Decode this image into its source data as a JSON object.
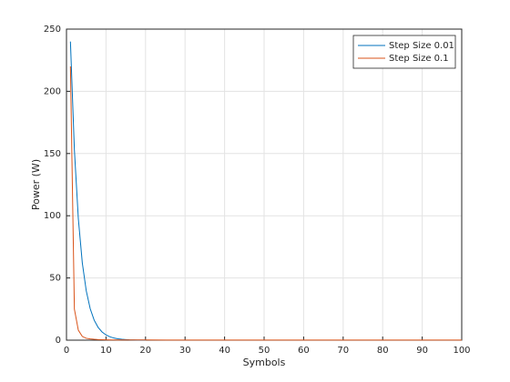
{
  "chart_data": {
    "type": "line",
    "xlabel": "Symbols",
    "ylabel": "Power (W)",
    "x": [
      1,
      2,
      3,
      4,
      5,
      6,
      7,
      8,
      9,
      10,
      11,
      12,
      13,
      14,
      15,
      16,
      17,
      18,
      19,
      20,
      25,
      30,
      35,
      40,
      45,
      50,
      55,
      60,
      65,
      70,
      75,
      80,
      85,
      90,
      95,
      100
    ],
    "series": [
      {
        "name": "Step Size 0.01",
        "color": "#0072bd",
        "values": [
          240,
          153,
          97.6,
          62.2,
          39.7,
          25.3,
          16.1,
          10.3,
          6.6,
          4.2,
          2.7,
          1.7,
          1.1,
          0.7,
          0.5,
          0.3,
          0.2,
          0.1,
          0.1,
          0.1,
          null,
          null,
          null,
          null,
          null,
          null,
          null,
          null,
          null,
          null,
          null,
          null,
          null,
          null,
          null,
          null
        ]
      },
      {
        "name": "Step Size 0.1",
        "color": "#d95319",
        "values": [
          220,
          25,
          8,
          3,
          1.5,
          1,
          0.7,
          0.5,
          0.4,
          0.3,
          0.2,
          0.2,
          0.2,
          0.2,
          0.2,
          0.2,
          0.2,
          0.2,
          0.2,
          0.2,
          0.1,
          0.1,
          0.1,
          0.1,
          0.1,
          0.1,
          0.1,
          0.1,
          0.1,
          0.1,
          0.1,
          0.1,
          0.1,
          0.1,
          0.1,
          0.1
        ]
      }
    ],
    "xlim": [
      0,
      100
    ],
    "xticks": [
      0,
      10,
      20,
      30,
      40,
      50,
      60,
      70,
      80,
      90,
      100
    ],
    "ylim": [
      0,
      250
    ],
    "yticks": [
      0,
      50,
      100,
      150,
      200,
      250
    ],
    "grid": true,
    "legend": "northeast"
  }
}
